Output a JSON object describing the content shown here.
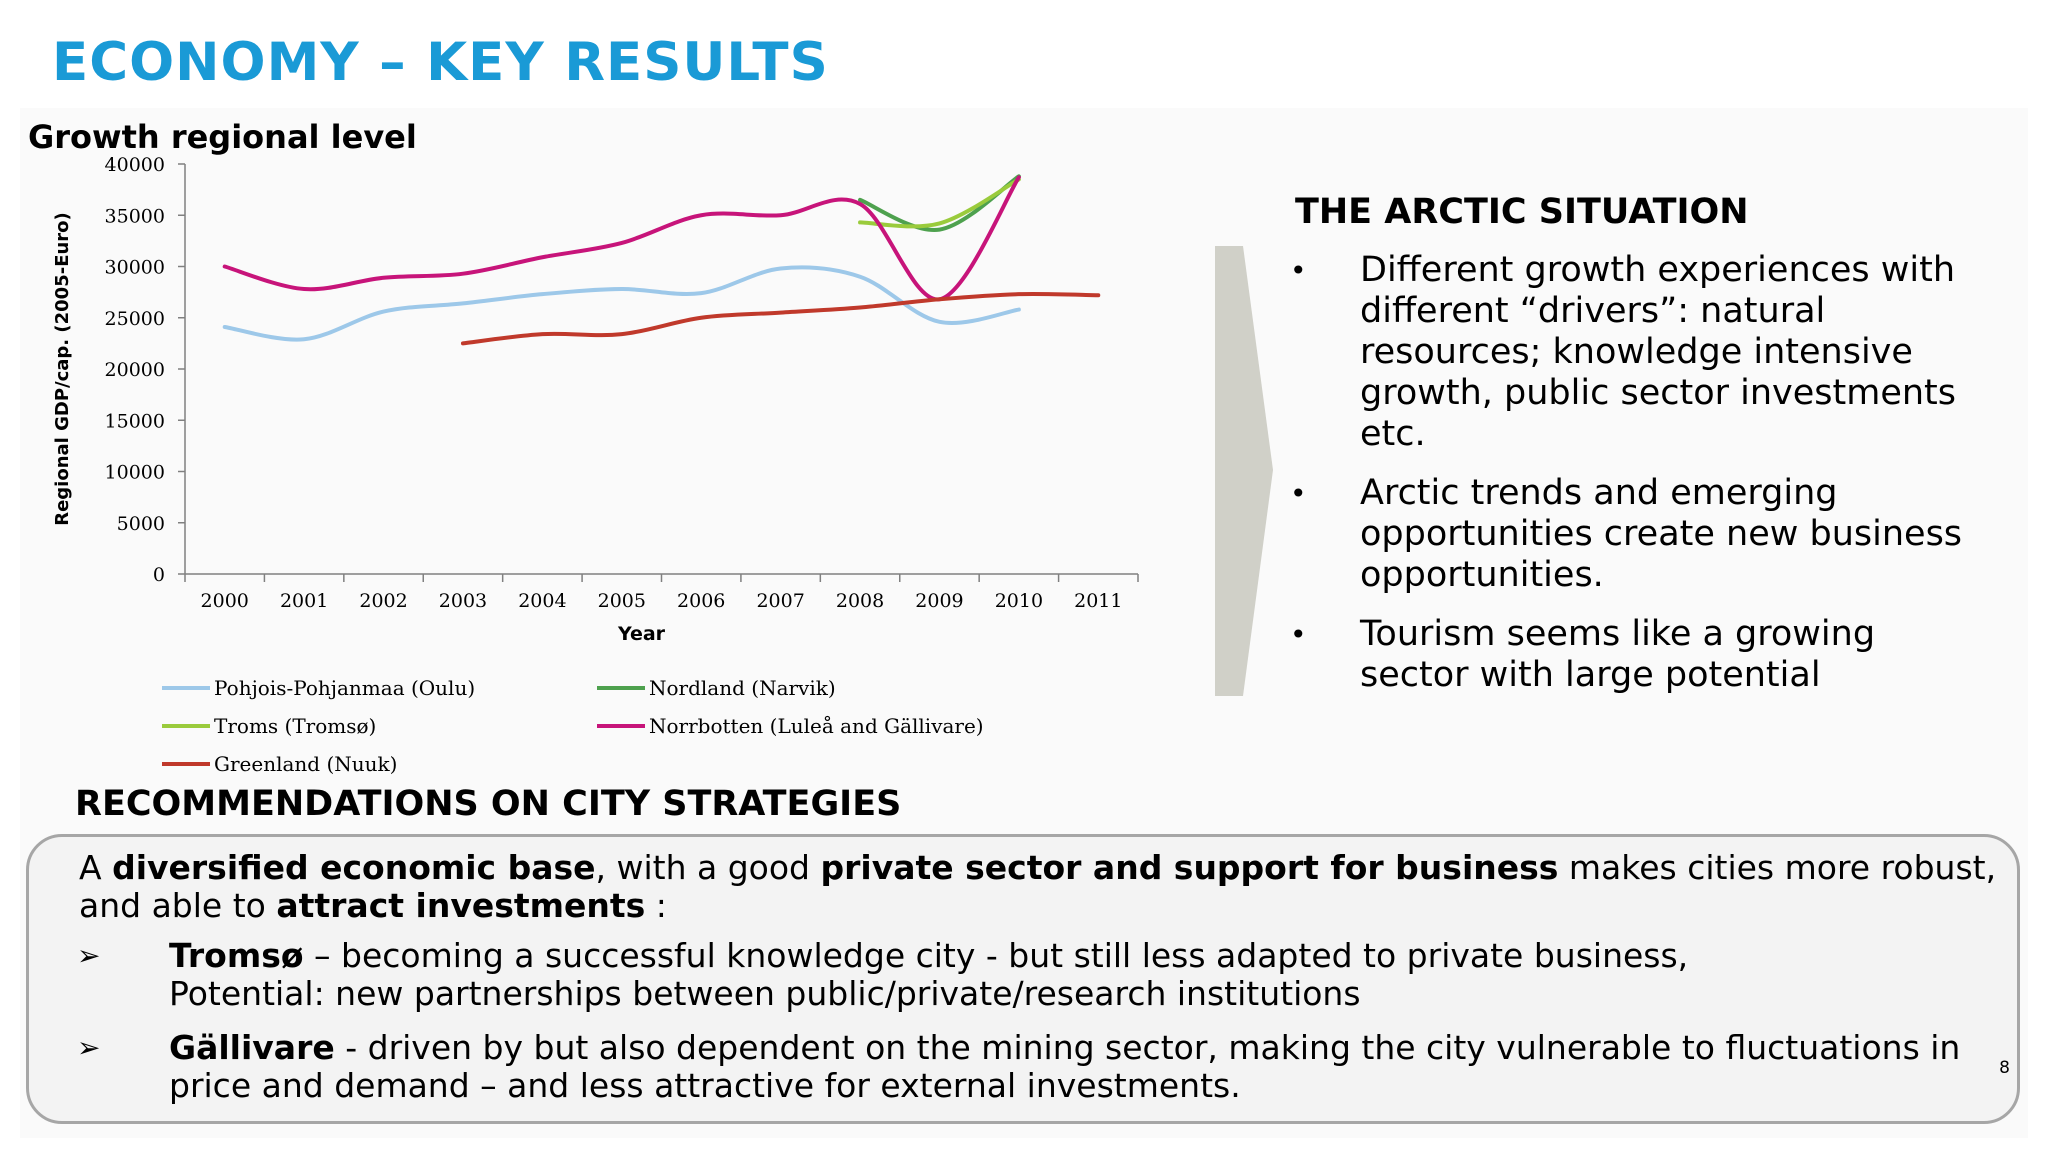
{
  "title": "ECONOMY – KEY RESULTS",
  "chart_heading": "Growth regional level",
  "chart_data": {
    "type": "line",
    "xlabel": "Year",
    "ylabel": "Regional GDP/cap. (2005-Euro)",
    "ylim": [
      0,
      40000
    ],
    "yticks": [
      0,
      5000,
      10000,
      15000,
      20000,
      25000,
      30000,
      35000,
      40000
    ],
    "categories": [
      "2000",
      "2001",
      "2002",
      "2003",
      "2004",
      "2005",
      "2006",
      "2007",
      "2008",
      "2009",
      "2010",
      "2011"
    ],
    "series": [
      {
        "name": "Pohjois-Pohjanmaa (Oulu)",
        "color": "#9dc8e9",
        "x": [
          2000,
          2001,
          2002,
          2003,
          2004,
          2005,
          2006,
          2007,
          2008,
          2009,
          2010
        ],
        "values": [
          24100,
          22900,
          25600,
          26400,
          27300,
          27800,
          27400,
          29800,
          29000,
          24600,
          25800
        ]
      },
      {
        "name": "Nordland (Narvik)",
        "color": "#4ea14e",
        "x": [
          2008,
          2009,
          2010
        ],
        "values": [
          36500,
          33600,
          38800
        ]
      },
      {
        "name": "Troms (Tromsø)",
        "color": "#9acb3c",
        "x": [
          2008,
          2009,
          2010
        ],
        "values": [
          34300,
          34200,
          38500
        ]
      },
      {
        "name": "Norrbotten (Luleå and Gällivare)",
        "color": "#c7147a",
        "x": [
          2000,
          2001,
          2002,
          2003,
          2004,
          2005,
          2006,
          2007,
          2008,
          2009,
          2010
        ],
        "values": [
          30000,
          27800,
          28900,
          29300,
          30900,
          32300,
          35000,
          35000,
          36100,
          26800,
          38700
        ]
      },
      {
        "name": "Greenland (Nuuk)",
        "color": "#c0392b",
        "x": [
          2003,
          2004,
          2005,
          2006,
          2007,
          2008,
          2009,
          2010,
          2011
        ],
        "values": [
          22500,
          23400,
          23400,
          25000,
          25500,
          26000,
          26800,
          27300,
          27200
        ]
      }
    ],
    "legend": "bottom"
  },
  "arctic": {
    "title": "THE ARCTIC SITUATION",
    "bullets": [
      "Different growth experiences with different “drivers”:  natural resources; knowledge intensive growth, public sector investments etc.",
      "Arctic trends and emerging opportunities create new business opportunities.",
      "Tourism seems like a growing sector with large potential"
    ],
    "bullet_char": "•"
  },
  "recommendations": {
    "title": "RECOMMENDATIONS ON CITY STRATEGIES",
    "intro": {
      "p1": "A ",
      "b1": "diversified economic base",
      "p2": ", with a good ",
      "b2": "private sector and support for business",
      "p3": " makes cities more robust, and able to ",
      "b3": "attract investments",
      "p4": " :"
    },
    "marker": "➢",
    "items": [
      {
        "bold": "Tromsø",
        "line1": " –  becoming a successful knowledge city - but still less adapted to private business,",
        "line2": "Potential: new partnerships between public/private/research institutions"
      },
      {
        "bold": "Gällivare",
        "line1": " - driven by but also dependent on the mining sector, making the city vulnerable to fluctuations in price and demand – and less attractive for external investments.",
        "line2": ""
      }
    ]
  },
  "page_number": "8"
}
